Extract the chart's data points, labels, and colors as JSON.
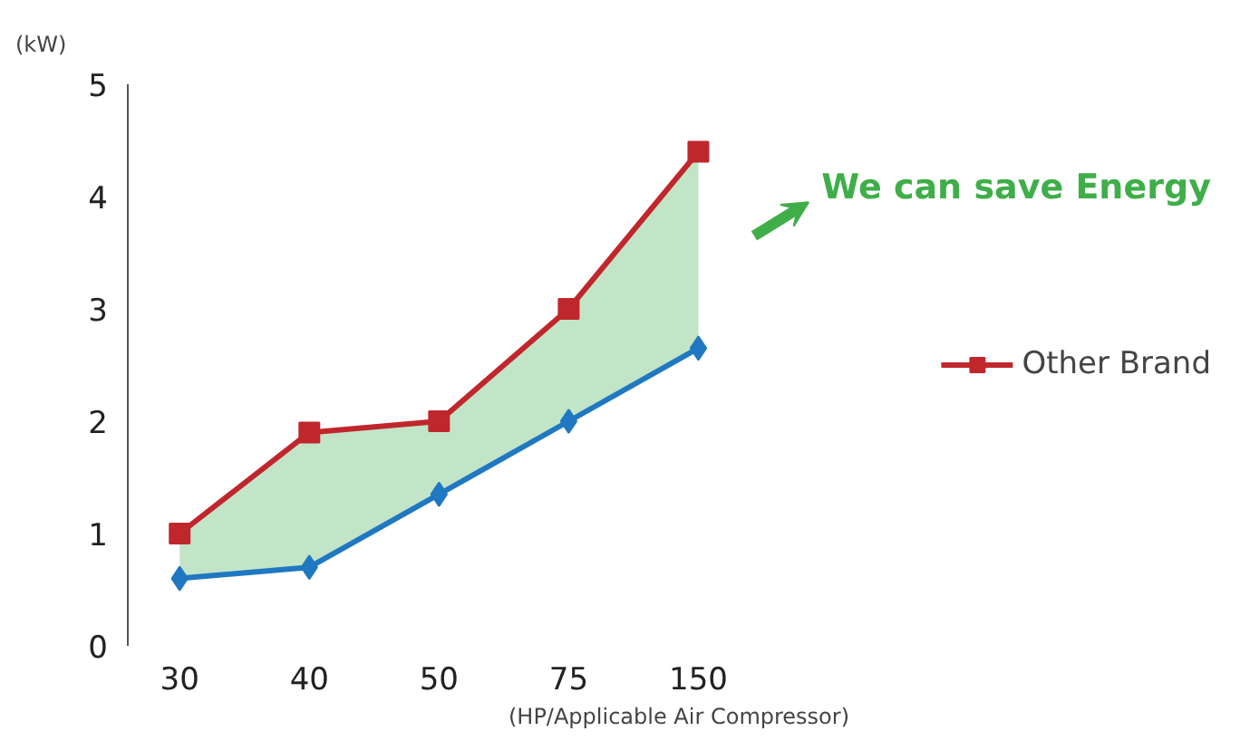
{
  "chart_data": {
    "type": "line",
    "ylabel": "(kW)",
    "xlabel": "(HP/Applicable Air Compressor)",
    "categories": [
      "30",
      "40",
      "50",
      "75",
      "150"
    ],
    "series": [
      {
        "name": "Other Brand",
        "color": "#c0272d",
        "marker": "square",
        "values": [
          1.0,
          1.9,
          2.0,
          3.0,
          4.4
        ],
        "lower": [
          0.6,
          0.7,
          1.35,
          2.0,
          2.65
        ],
        "upper": [
          1.0,
          1.9,
          2.0,
          3.0,
          4.4
        ]
      },
      {
        "color": "#1f78c1",
        "marker": "diamond",
        "values": [
          0.6,
          0.7,
          1.35,
          2.0,
          2.65
        ]
      }
    ],
    "ylim": [
      0,
      5
    ],
    "yticks": [
      0,
      1,
      2,
      3,
      4,
      5
    ],
    "legend": "right",
    "line_style": "solid",
    "annotations": [
      "We can save Energy"
    ]
  }
}
